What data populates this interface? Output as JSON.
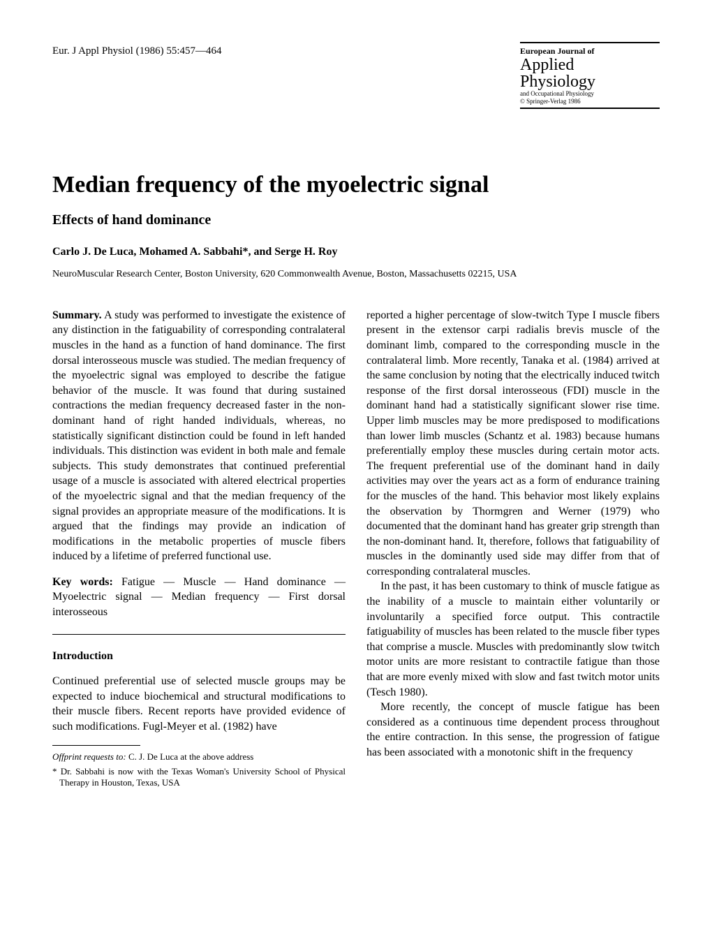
{
  "header": {
    "citation": "Eur. J Appl Physiol (1986) 55:457—464",
    "journal_name": "European Journal of",
    "journal_title_1": "Applied",
    "journal_title_2": "Physiology",
    "journal_sub": "and Occupational Physiology",
    "copyright": "© Springer-Verlag 1986"
  },
  "title": "Median frequency of the myoelectric signal",
  "subtitle": "Effects of hand dominance",
  "authors": "Carlo J. De Luca, Mohamed A. Sabbahi*, and Serge H. Roy",
  "affiliation": "NeuroMuscular Research Center, Boston University, 620 Commonwealth Avenue, Boston, Massachusetts 02215, USA",
  "summary": {
    "label": "Summary.",
    "text": " A study was performed to investigate the existence of any distinction in the fatiguability of corresponding contralateral muscles in the hand as a function of hand dominance. The first dorsal interosseous muscle was studied. The median frequency of the myoelectric signal was employed to describe the fatigue behavior of the muscle. It was found that during sustained contractions the median frequency decreased faster in the non-dominant hand of right handed individuals, whereas, no statistically significant distinction could be found in left handed individuals. This distinction was evident in both male and female subjects. This study demonstrates that continued preferential usage of a muscle is associated with altered electrical properties of the myoelectric signal and that the median frequency of the signal provides an appropriate measure of the modifications. It is argued that the findings may provide an indication of modifications in the metabolic properties of muscle fibers induced by a lifetime of preferred functional use."
  },
  "keywords": {
    "label": "Key words:",
    "text": " Fatigue — Muscle — Hand dominance — Myoelectric signal — Median frequency — First dorsal interosseous"
  },
  "introduction": {
    "heading": "Introduction",
    "para1": "Continued preferential use of selected muscle groups may be expected to induce biochemical and structural modifications to their muscle fibers. Recent reports have provided evidence of such modifications. Fugl-Meyer et al. (1982) have"
  },
  "footnotes": {
    "offprint_label": "Offprint requests to:",
    "offprint_text": " C. J. De Luca at the above address",
    "note": "* Dr. Sabbahi is now with the Texas Woman's University School of Physical Therapy in Houston, Texas, USA"
  },
  "right_column": {
    "para1": "reported a higher percentage of slow-twitch Type I muscle fibers present in the extensor carpi radialis brevis muscle of the dominant limb, compared to the corresponding muscle in the contralateral limb. More recently, Tanaka et al. (1984) arrived at the same conclusion by noting that the electrically induced twitch response of the first dorsal interosseous (FDI) muscle in the dominant hand had a statistically significant slower rise time. Upper limb muscles may be more predisposed to modifications than lower limb muscles (Schantz et al. 1983) because humans preferentially employ these muscles during certain motor acts. The frequent preferential use of the dominant hand in daily activities may over the years act as a form of endurance training for the muscles of the hand. This behavior most likely explains the observation by Thormgren and Werner (1979) who documented that the dominant hand has greater grip strength than the non-dominant hand. It, therefore, follows that fatiguability of muscles in the dominantly used side may differ from that of corresponding contralateral muscles.",
    "para2": "In the past, it has been customary to think of muscle fatigue as the inability of a muscle to maintain either voluntarily or involuntarily a specified force output. This contractile fatiguability of muscles has been related to the muscle fiber types that comprise a muscle. Muscles with predominantly slow twitch motor units are more resistant to contractile fatigue than those that are more evenly mixed with slow and fast twitch motor units (Tesch 1980).",
    "para3": "More recently, the concept of muscle fatigue has been considered as a continuous time dependent process throughout the entire contraction. In this sense, the progression of fatigue has been associated with a monotonic shift in the frequency"
  }
}
